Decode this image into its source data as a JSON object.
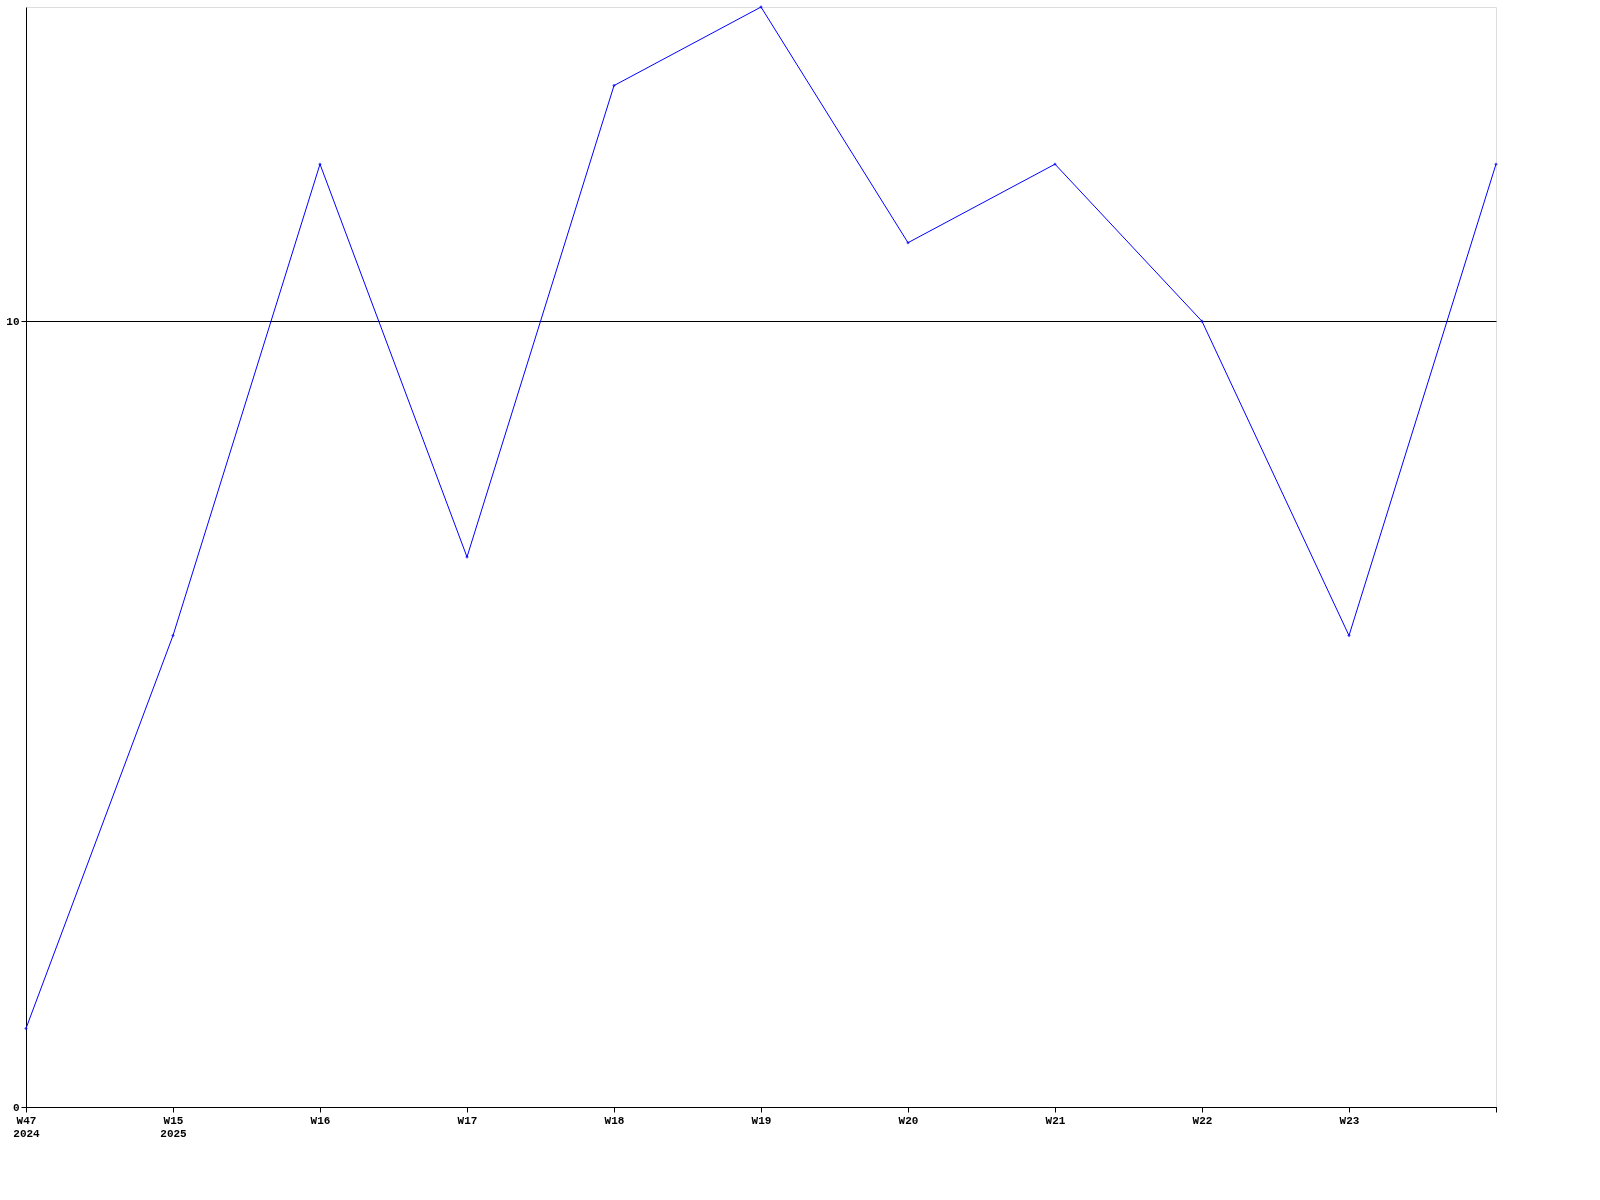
{
  "chart_data": {
    "type": "line",
    "categories": [
      "W47\n2024",
      "W15\n2025",
      "W16",
      "W17",
      "W18",
      "W19",
      "W20",
      "W21",
      "W22",
      "W23",
      null
    ],
    "series": [
      {
        "color": "#0000ff",
        "values": [
          1,
          6,
          12,
          7,
          13,
          14,
          11,
          12,
          10,
          6,
          12
        ]
      }
    ],
    "ylim": [
      0,
      14
    ],
    "yticks": [
      0,
      10
    ],
    "grid": "y",
    "marker": "diamond",
    "line_style": "solid"
  }
}
